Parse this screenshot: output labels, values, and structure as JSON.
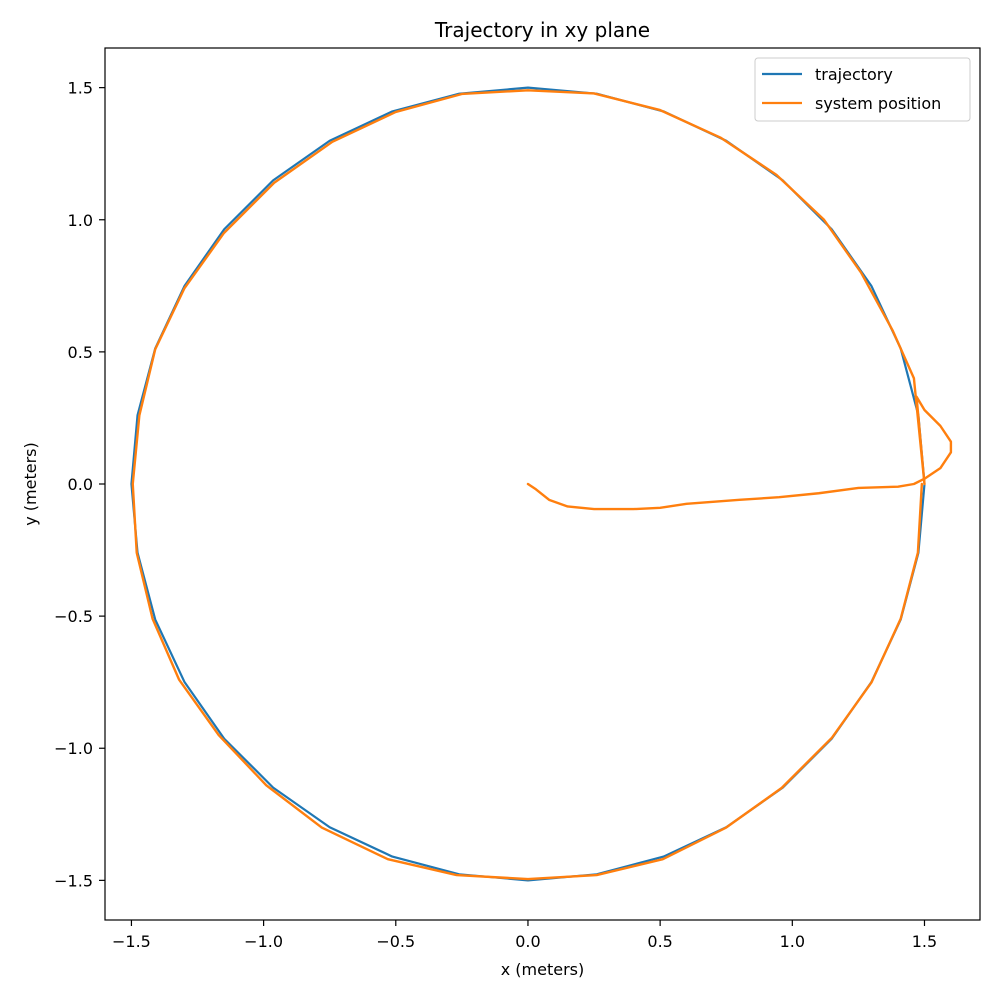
{
  "chart_data": {
    "type": "line",
    "title": "Trajectory in xy plane",
    "xlabel": "x (meters)",
    "ylabel": "y (meters)",
    "xlim": [
      -1.6,
      1.71
    ],
    "ylim": [
      -1.65,
      1.65
    ],
    "xticks": [
      -1.5,
      -1.0,
      -0.5,
      0.0,
      0.5,
      1.0,
      1.5
    ],
    "xtick_labels": [
      "−1.5",
      "−1.0",
      "−0.5",
      "0.0",
      "0.5",
      "1.0",
      "1.5"
    ],
    "yticks": [
      -1.5,
      -1.0,
      -0.5,
      0.0,
      0.5,
      1.0,
      1.5
    ],
    "ytick_labels": [
      "−1.5",
      "−1.0",
      "−0.5",
      "0.0",
      "0.5",
      "1.0",
      "1.5"
    ],
    "grid": false,
    "legend_position": "top-right",
    "series": [
      {
        "name": "trajectory",
        "color": "#1f77b4",
        "x": [
          1.5,
          1.477,
          1.41,
          1.299,
          1.149,
          0.964,
          0.75,
          0.513,
          0.26,
          0.0,
          -0.26,
          -0.513,
          -0.75,
          -0.964,
          -1.149,
          -1.299,
          -1.41,
          -1.477,
          -1.5,
          -1.477,
          -1.41,
          -1.299,
          -1.149,
          -0.964,
          -0.75,
          -0.513,
          -0.26,
          0.0,
          0.26,
          0.513,
          0.75,
          0.964,
          1.149,
          1.299,
          1.41,
          1.477,
          1.5
        ],
        "y": [
          0.0,
          0.26,
          0.513,
          0.75,
          0.964,
          1.149,
          1.299,
          1.41,
          1.477,
          1.5,
          1.477,
          1.41,
          1.299,
          1.149,
          0.964,
          0.75,
          0.513,
          0.26,
          0.0,
          -0.26,
          -0.513,
          -0.75,
          -0.964,
          -1.149,
          -1.299,
          -1.41,
          -1.477,
          -1.5,
          -1.477,
          -1.41,
          -1.299,
          -1.149,
          -0.964,
          -0.75,
          -0.513,
          -0.26,
          0.0
        ]
      },
      {
        "name": "system position",
        "color": "#ff7f0e",
        "x": [
          0.0,
          0.03,
          0.08,
          0.15,
          0.25,
          0.4,
          0.5,
          0.6,
          0.8,
          0.95,
          1.1,
          1.25,
          1.4,
          1.46,
          1.5,
          1.56,
          1.6,
          1.6,
          1.56,
          1.5,
          1.47,
          1.5,
          1.46,
          1.38,
          1.26,
          1.12,
          0.94,
          0.73,
          0.5,
          0.25,
          0.0,
          -0.25,
          -0.5,
          -0.74,
          -0.96,
          -1.15,
          -1.3,
          -1.41,
          -1.47,
          -1.495,
          -1.48,
          -1.42,
          -1.32,
          -1.17,
          -0.99,
          -0.78,
          -0.53,
          -0.27,
          0.0,
          0.26,
          0.51,
          0.75,
          0.96,
          1.15,
          1.3,
          1.41,
          1.475,
          1.49
        ],
        "y": [
          0.0,
          -0.02,
          -0.06,
          -0.085,
          -0.095,
          -0.095,
          -0.09,
          -0.075,
          -0.06,
          -0.05,
          -0.035,
          -0.015,
          -0.01,
          0.0,
          0.02,
          0.06,
          0.12,
          0.16,
          0.22,
          0.28,
          0.33,
          0.0,
          0.4,
          0.58,
          0.8,
          1.0,
          1.17,
          1.31,
          1.415,
          1.478,
          1.49,
          1.476,
          1.408,
          1.295,
          1.14,
          0.95,
          0.74,
          0.51,
          0.26,
          0.0,
          -0.26,
          -0.51,
          -0.74,
          -0.95,
          -1.14,
          -1.3,
          -1.42,
          -1.48,
          -1.495,
          -1.48,
          -1.42,
          -1.3,
          -1.15,
          -0.96,
          -0.75,
          -0.51,
          -0.26,
          0.0
        ]
      }
    ]
  }
}
